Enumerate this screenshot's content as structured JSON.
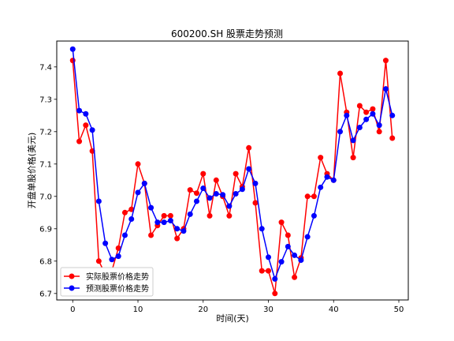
{
  "chart_data": {
    "type": "line",
    "title": "600200.SH 股票走势预测",
    "xlabel": "时间(天)",
    "ylabel": "开盘单股价格(美元)",
    "xlim": [
      -2.45,
      51.45
    ],
    "ylim": [
      6.68,
      7.48
    ],
    "xticks": [
      0,
      10,
      20,
      30,
      40,
      50
    ],
    "yticks": [
      6.7,
      6.8,
      6.9,
      7.0,
      7.1,
      7.2,
      7.3,
      7.4
    ],
    "ytick_labels": [
      "6.7",
      "6.8",
      "6.9",
      "7.0",
      "7.1",
      "7.2",
      "7.3",
      "7.4"
    ],
    "grid": false,
    "legend_position": "lower-left",
    "x": [
      0,
      1,
      2,
      3,
      4,
      5,
      6,
      7,
      8,
      9,
      10,
      11,
      12,
      13,
      14,
      15,
      16,
      17,
      18,
      19,
      20,
      21,
      22,
      23,
      24,
      25,
      26,
      27,
      28,
      29,
      30,
      31,
      32,
      33,
      34,
      35,
      36,
      37,
      38,
      39,
      40,
      41,
      42,
      43,
      44,
      45,
      46,
      47,
      48,
      49
    ],
    "series": [
      {
        "name": "实际股票价格走势",
        "color": "#ff0000",
        "values": [
          7.42,
          7.17,
          7.22,
          7.14,
          6.8,
          6.76,
          6.77,
          6.84,
          6.95,
          6.96,
          7.1,
          7.04,
          6.88,
          6.91,
          6.94,
          6.94,
          6.87,
          6.9,
          7.02,
          7.01,
          7.07,
          6.94,
          7.05,
          7.0,
          6.94,
          7.07,
          7.03,
          7.15,
          6.98,
          6.77,
          6.77,
          6.7,
          6.92,
          6.88,
          6.75,
          6.81,
          7.0,
          7.0,
          7.12,
          7.07,
          7.05,
          7.38,
          7.26,
          7.12,
          7.28,
          7.26,
          7.27,
          7.2,
          7.42,
          7.18
        ]
      },
      {
        "name": "预测股票价格走势",
        "color": "#0000ff",
        "values": [
          7.455,
          7.265,
          7.255,
          7.205,
          6.985,
          6.855,
          6.805,
          6.815,
          6.88,
          6.93,
          7.012,
          7.04,
          6.965,
          6.92,
          6.92,
          6.925,
          6.9,
          6.893,
          6.945,
          6.985,
          7.025,
          6.995,
          7.008,
          7.005,
          6.97,
          7.008,
          7.022,
          7.085,
          7.04,
          6.9,
          6.812,
          6.745,
          6.798,
          6.845,
          6.818,
          6.803,
          6.875,
          6.94,
          7.028,
          7.06,
          7.05,
          7.2,
          7.25,
          7.173,
          7.213,
          7.238,
          7.255,
          7.22,
          7.332,
          7.25
        ]
      }
    ]
  }
}
